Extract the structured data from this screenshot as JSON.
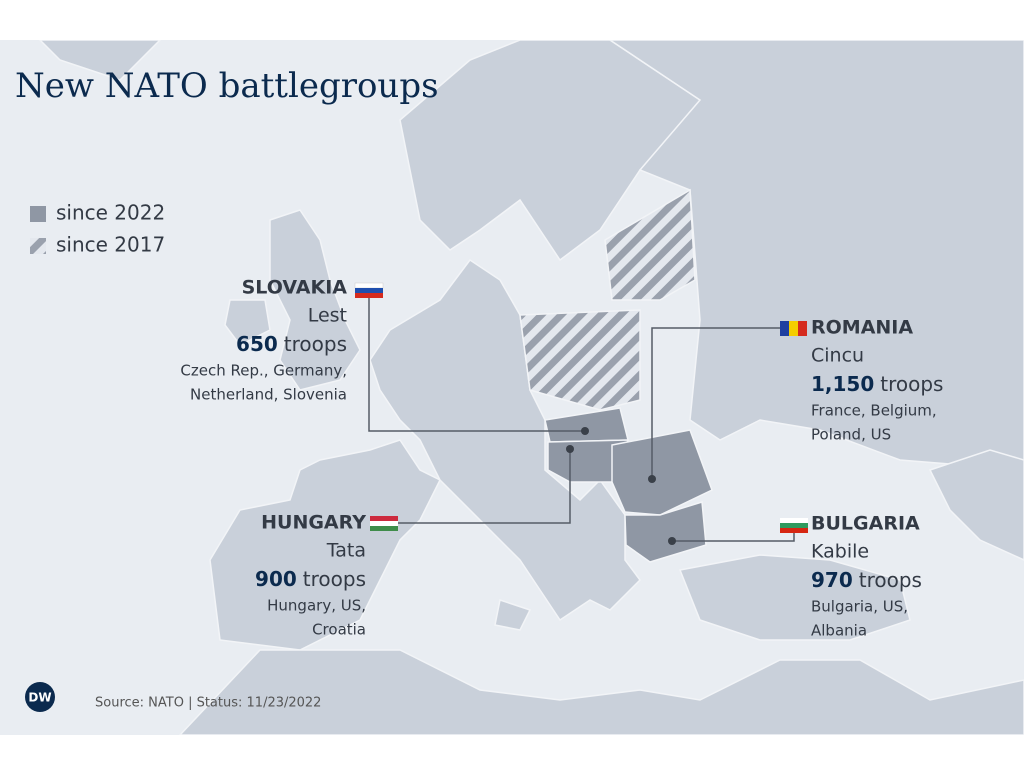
{
  "title": "New NATO battlegroups",
  "legend": [
    {
      "label": "since 2022"
    },
    {
      "label": "since 2017"
    }
  ],
  "callouts": [
    {
      "country": "SLOVAKIA",
      "place": "Lest",
      "troops": "650",
      "unit": "troops",
      "contributors": [
        "Czech Rep., Germany,",
        "Netherland, Slovenia"
      ]
    },
    {
      "country": "ROMANIA",
      "place": "Cincu",
      "troops": "1,150",
      "unit": "troops",
      "contributors": [
        "France, Belgium,",
        "Poland, US"
      ]
    },
    {
      "country": "HUNGARY",
      "place": "Tata",
      "troops": "900",
      "unit": "troops",
      "contributors": [
        "Hungary, US,",
        "Croatia"
      ]
    },
    {
      "country": "BULGARIA",
      "place": "Kabile",
      "troops": "970",
      "unit": "troops",
      "contributors": [
        "Bulgaria, US,",
        "Albania"
      ]
    }
  ],
  "logo": "DW",
  "source": "Source: NATO | Status: 11/23/2022"
}
